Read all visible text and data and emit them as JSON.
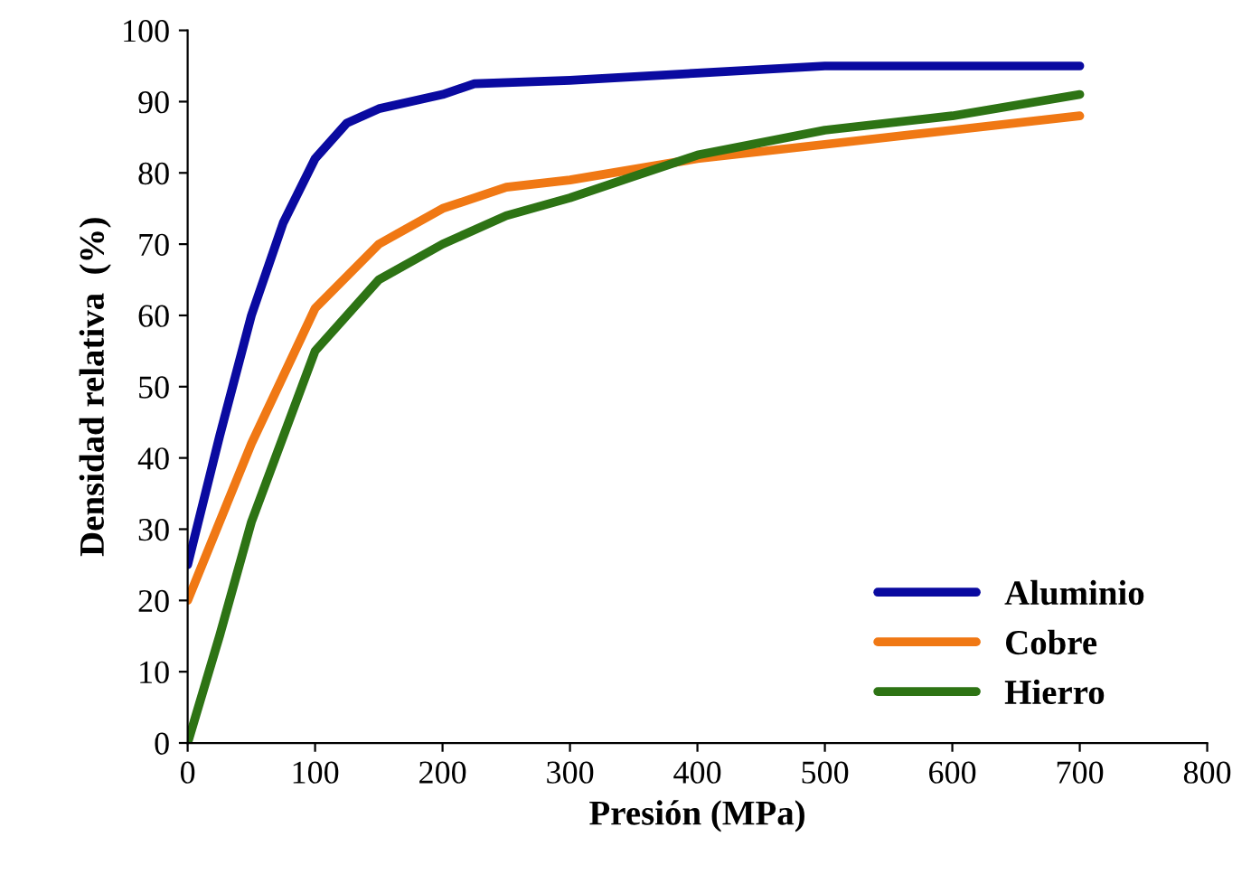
{
  "chart_data": {
    "type": "line",
    "xlabel": "Presión (MPa)",
    "ylabel": "Densidad relativa  (%)",
    "xlim": [
      0,
      800
    ],
    "xticks": [
      0,
      100,
      200,
      300,
      400,
      500,
      600,
      700,
      800
    ],
    "ylim": [
      0,
      100
    ],
    "yticks": [
      0,
      10,
      20,
      30,
      40,
      50,
      60,
      70,
      80,
      90,
      100
    ],
    "grid": false,
    "legend": "bottom right",
    "marker": "none",
    "line_style": "solid",
    "series": [
      {
        "name": "Aluminio",
        "color": "#0a0aa0",
        "x": [
          0,
          25,
          50,
          75,
          100,
          125,
          150,
          200,
          225,
          300,
          400,
          500,
          700
        ],
        "values": [
          25,
          43,
          60,
          73,
          82,
          87,
          89,
          91,
          92.5,
          93,
          94,
          95,
          95
        ]
      },
      {
        "name": "Cobre",
        "color": "#f07814",
        "x": [
          0,
          50,
          100,
          150,
          200,
          250,
          300,
          400,
          500,
          600,
          700
        ],
        "values": [
          20,
          42,
          61,
          70,
          75,
          78,
          79,
          82,
          84,
          86,
          88
        ]
      },
      {
        "name": "Hierro",
        "color": "#2d7314",
        "x": [
          0,
          25,
          50,
          100,
          150,
          200,
          250,
          300,
          350,
          400,
          500,
          600,
          700
        ],
        "values": [
          0,
          15,
          31,
          55,
          65,
          70,
          74,
          76.5,
          79.5,
          82.5,
          86,
          88,
          91
        ]
      }
    ]
  }
}
